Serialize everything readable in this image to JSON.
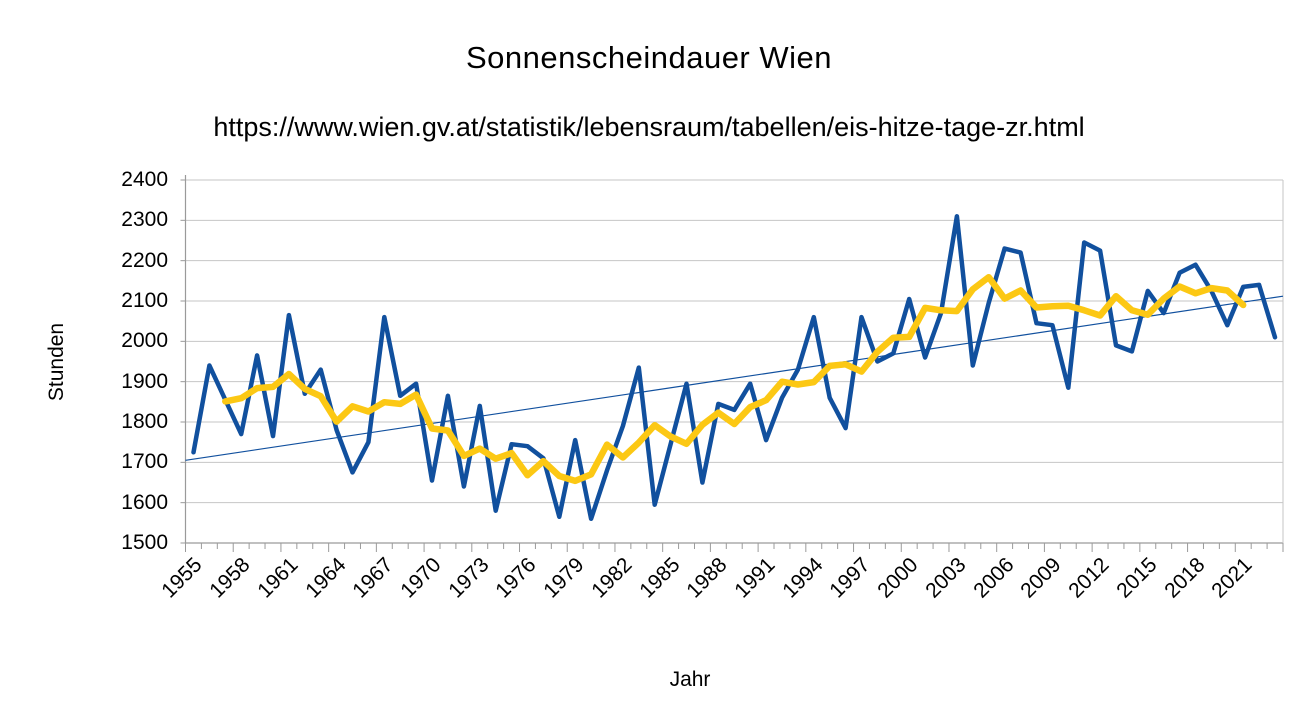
{
  "chart": {
    "title": "Sonnenscheindauer Wien",
    "subtitle": "https://www.wien.gv.at/statistik/lebensraum/tabellen/eis-hitze-tage-zr.html",
    "y_axis_title": "Stunden",
    "x_axis_title": "Jahr"
  },
  "chart_data": {
    "type": "line",
    "title": "Sonnenscheindauer Wien",
    "subtitle": "https://www.wien.gv.at/statistik/lebensraum/tabellen/eis-hitze-tage-zr.html",
    "xlabel": "Jahr",
    "ylabel": "Stunden",
    "ylim": [
      1500,
      2400
    ],
    "ytick_step": 100,
    "ytick_labels": [
      "2400",
      "2300",
      "2200",
      "2100",
      "2000",
      "1900",
      "1800",
      "1700",
      "1600",
      "1500"
    ],
    "grid": "horizontal",
    "legend": "none",
    "years_start": 1955,
    "years_end": 2023,
    "xtick_labels": [
      "1955",
      "1958",
      "1961",
      "1964",
      "1967",
      "1970",
      "1973",
      "1976",
      "1979",
      "1982",
      "1985",
      "1988",
      "1991",
      "1994",
      "1997",
      "2000",
      "2003",
      "2006",
      "2009",
      "2012",
      "2015",
      "2018",
      "2021"
    ],
    "series": [
      {
        "name": "jahreswerte",
        "color": "#11509e",
        "stroke_width": 4.5,
        "values": [
          1725,
          1940,
          1855,
          1770,
          1965,
          1765,
          2065,
          1870,
          1930,
          1780,
          1675,
          1750,
          2060,
          1865,
          1895,
          1655,
          1865,
          1640,
          1840,
          1580,
          1745,
          1740,
          1710,
          1565,
          1755,
          1560,
          1680,
          1790,
          1935,
          1595,
          1745,
          1895,
          1650,
          1845,
          1830,
          1895,
          1755,
          1860,
          1930,
          2060,
          1860,
          1785,
          2060,
          1950,
          1970,
          2105,
          1960,
          2070,
          2310,
          1940,
          2095,
          2230,
          2220,
          2045,
          2040,
          1885,
          2245,
          2225,
          1990,
          1975,
          2125,
          2070,
          2170,
          2190,
          2125,
          2040,
          2135,
          2140,
          2010
        ]
      },
      {
        "name": "gleitender-durchschnitt",
        "color": "#fcc814",
        "stroke_width": 6.5,
        "derived": "centered_moving_average",
        "window": 5
      },
      {
        "name": "trend",
        "color": "#11509e",
        "stroke_width": 1.2,
        "straight_line": {
          "start_value": 1705,
          "end_value": 2112
        }
      }
    ],
    "colors": {
      "gridline": "#c6c6c6",
      "axis": "#9a9a9a",
      "text": "#000000"
    }
  }
}
